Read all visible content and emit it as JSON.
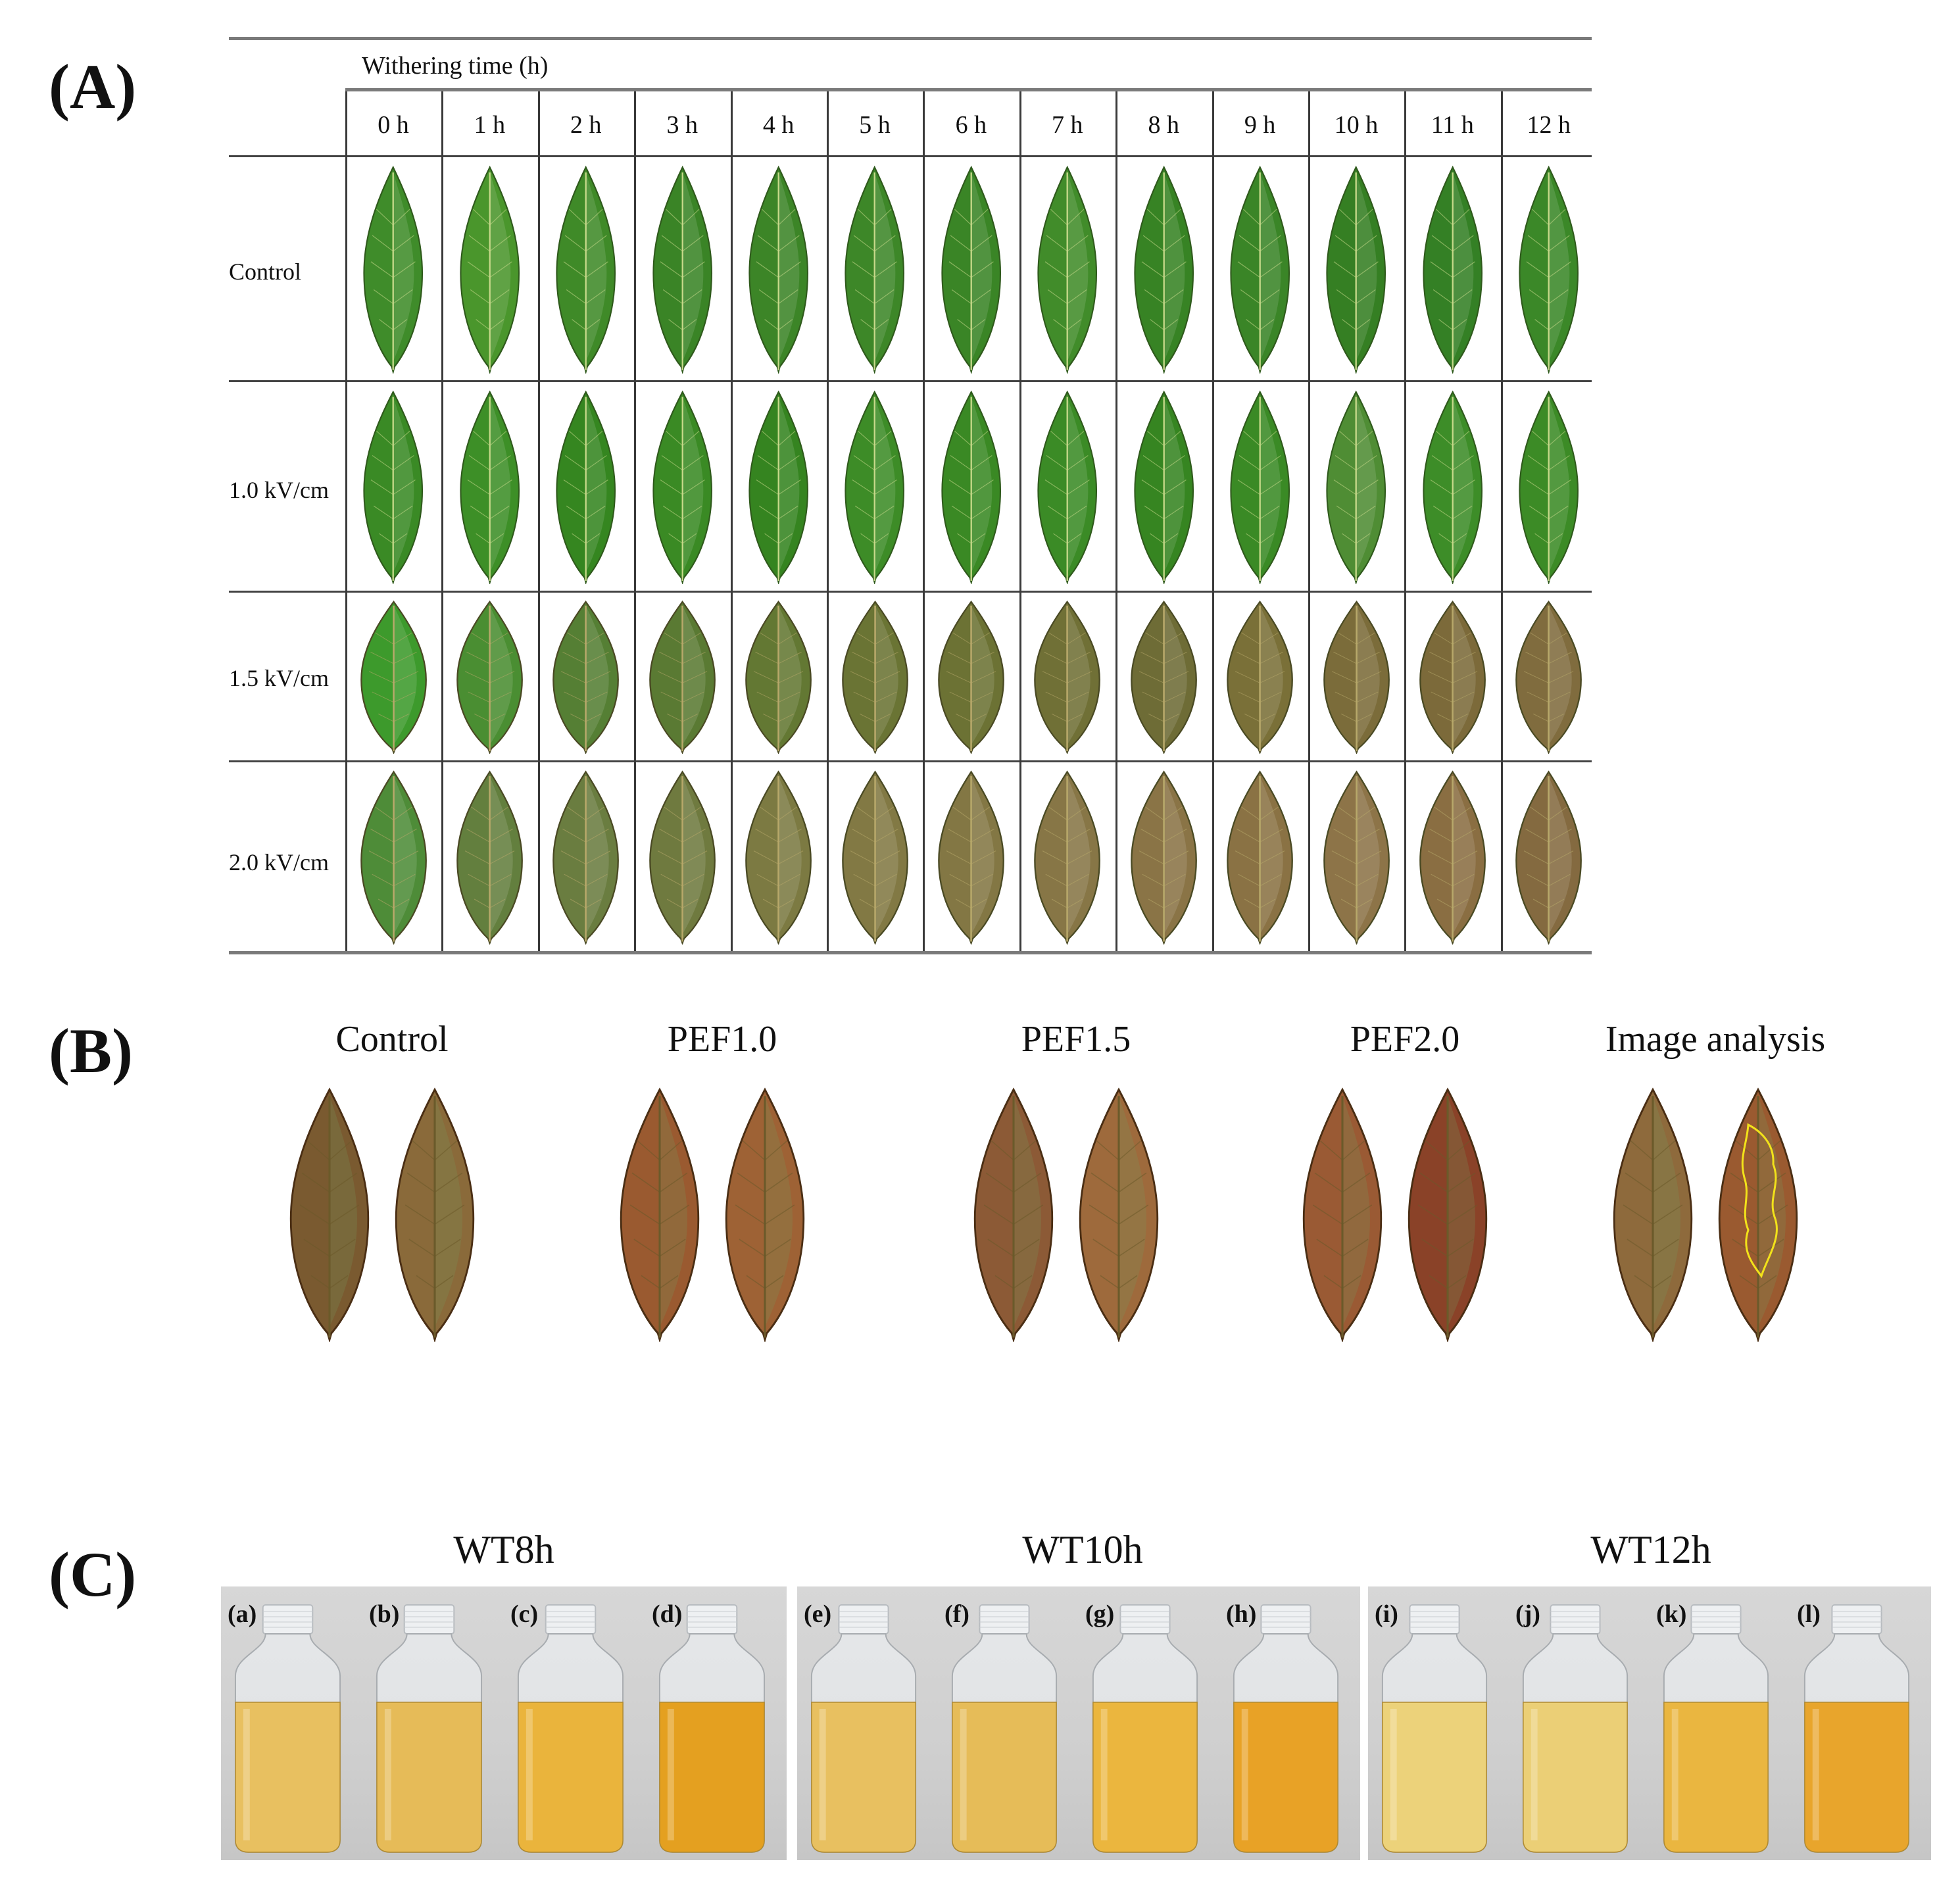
{
  "panels": {
    "a_label": "(A)",
    "b_label": "(B)",
    "c_label": "(C)"
  },
  "panel_a": {
    "header_title": "Withering time (h)",
    "time_points": [
      "0 h",
      "1 h",
      "2 h",
      "3 h",
      "4 h",
      "5 h",
      "6 h",
      "7 h",
      "8 h",
      "9 h",
      "10 h",
      "11 h",
      "12 h"
    ],
    "rows": [
      {
        "label": "Control",
        "leaf_colors": [
          "#3f8c2a",
          "#4a962c",
          "#3f8a28",
          "#3a8426",
          "#3c8527",
          "#3d8728",
          "#3a8526",
          "#418c2a",
          "#378324",
          "#3a8527",
          "#357f23",
          "#348025",
          "#3b8828"
        ]
      },
      {
        "label": "1.0 kV/cm",
        "leaf_colors": [
          "#3a8a25",
          "#3d8f27",
          "#358620",
          "#3a8a24",
          "#358420",
          "#3d8c27",
          "#3a8924",
          "#3b8b26",
          "#368521",
          "#3a8a25",
          "#4f8d34",
          "#3d8d28",
          "#3c8b26"
        ]
      },
      {
        "label": "1.5 kV/cm",
        "leaf_colors": [
          "#3d9a2c",
          "#4a8e32",
          "#557f34",
          "#5a7a33",
          "#637833",
          "#6a7434",
          "#6c7234",
          "#707036",
          "#6e6c36",
          "#7a7038",
          "#7b6c3a",
          "#7c6a3a",
          "#806c3e"
        ]
      },
      {
        "label": "2.0 kV/cm",
        "leaf_colors": [
          "#4e8c38",
          "#637f3e",
          "#6a7d40",
          "#6f7a3f",
          "#7c7a42",
          "#827944",
          "#837744",
          "#877646",
          "#8a7446",
          "#8a7244",
          "#8d7448",
          "#8a6e42",
          "#846a40"
        ]
      }
    ]
  },
  "panel_b": {
    "groups": [
      {
        "title": "Control",
        "leaf_colors": [
          "#7a5a30",
          "#8a6a3a"
        ]
      },
      {
        "title": "PEF1.0",
        "leaf_colors": [
          "#9a5a30",
          "#9e6235"
        ]
      },
      {
        "title": "PEF1.5",
        "leaf_colors": [
          "#8c5a36",
          "#9e6a3c"
        ]
      },
      {
        "title": "PEF2.0",
        "leaf_colors": [
          "#9a5a34",
          "#8a4228"
        ]
      },
      {
        "title": "Image analysis",
        "leaf_colors": [
          "#8e6a3c",
          "#9a5a30"
        ]
      }
    ]
  },
  "panel_c": {
    "groups": [
      {
        "title": "WT8h",
        "bottles": [
          {
            "tag": "(a)",
            "color": "#e8c060"
          },
          {
            "tag": "(b)",
            "color": "#e6bb58"
          },
          {
            "tag": "(c)",
            "color": "#eab43c"
          },
          {
            "tag": "(d)",
            "color": "#e4a020"
          }
        ]
      },
      {
        "title": "WT10h",
        "bottles": [
          {
            "tag": "(e)",
            "color": "#e8c060"
          },
          {
            "tag": "(f)",
            "color": "#e6bc58"
          },
          {
            "tag": "(g)",
            "color": "#ebb63e"
          },
          {
            "tag": "(h)",
            "color": "#e8a226"
          }
        ]
      },
      {
        "title": "WT12h",
        "bottles": [
          {
            "tag": "(i)",
            "color": "#ecd27a"
          },
          {
            "tag": "(j)",
            "color": "#ebcf76"
          },
          {
            "tag": "(k)",
            "color": "#eab640"
          },
          {
            "tag": "(l)",
            "color": "#e8a52c"
          }
        ]
      }
    ]
  }
}
